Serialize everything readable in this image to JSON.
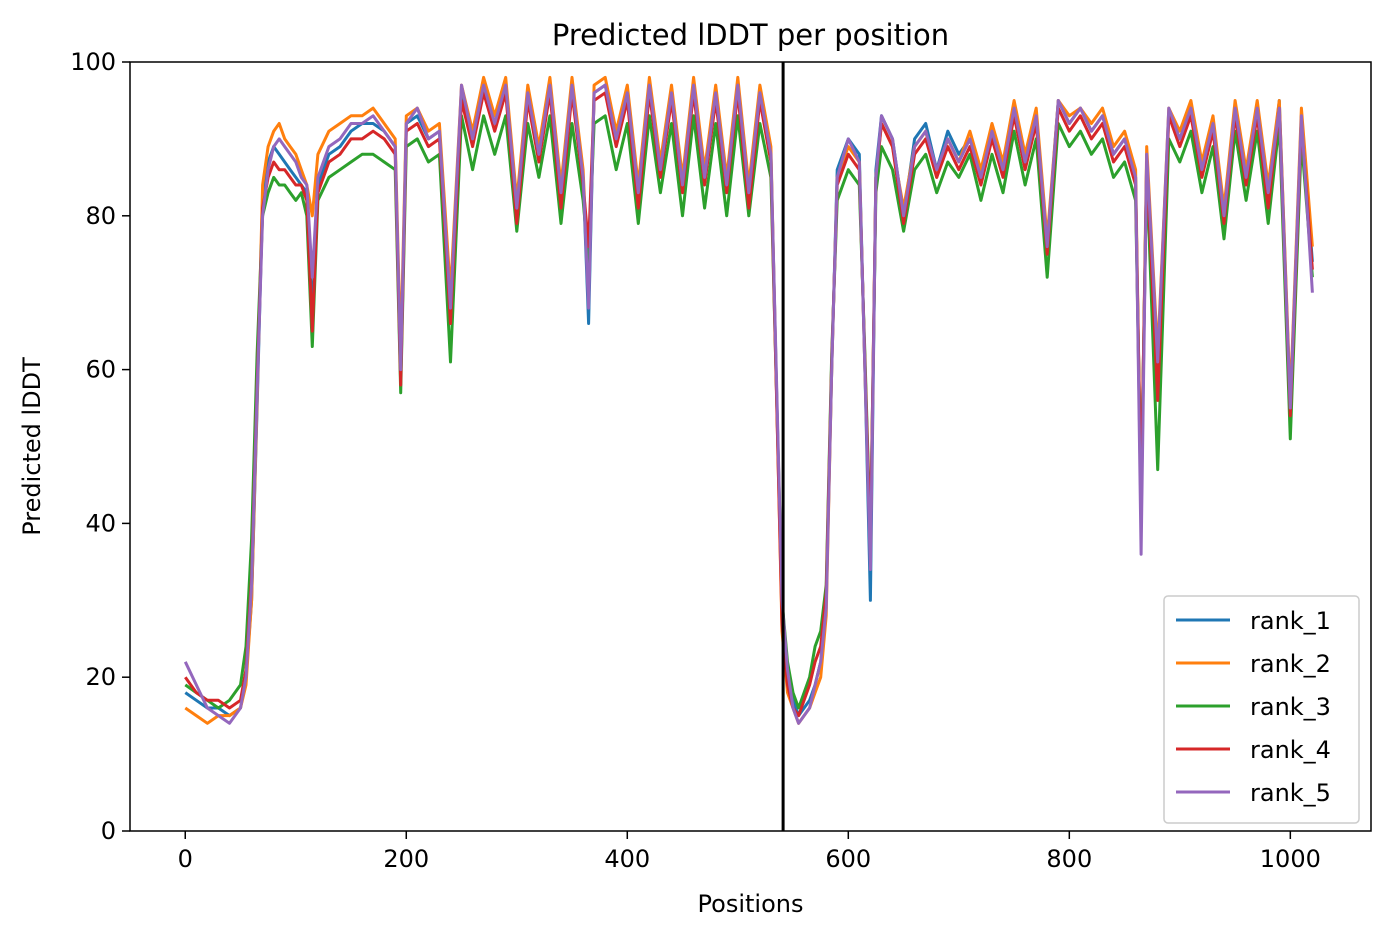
{
  "chart_data": {
    "type": "line",
    "title": "Predicted lDDT per position",
    "xlabel": "Positions",
    "ylabel": "Predicted lDDT",
    "xlim": [
      -50,
      1073
    ],
    "ylim": [
      0,
      100
    ],
    "xticks": [
      0,
      200,
      400,
      600,
      800,
      1000
    ],
    "yticks": [
      0,
      20,
      40,
      60,
      80,
      100
    ],
    "grid": false,
    "legend_position": "lower right",
    "vline_x": 541,
    "series": [
      {
        "name": "rank_1",
        "color": "#1f77b4",
        "x": [
          0,
          10,
          20,
          30,
          40,
          50,
          55,
          60,
          65,
          70,
          75,
          80,
          85,
          90,
          95,
          100,
          105,
          110,
          115,
          120,
          130,
          140,
          150,
          160,
          170,
          180,
          190,
          195,
          200,
          210,
          220,
          230,
          240,
          250,
          260,
          270,
          280,
          290,
          300,
          310,
          320,
          330,
          340,
          350,
          360,
          365,
          370,
          380,
          390,
          400,
          410,
          420,
          430,
          440,
          450,
          460,
          470,
          480,
          490,
          500,
          510,
          520,
          530,
          540,
          545,
          550,
          555,
          560,
          565,
          570,
          575,
          580,
          585,
          590,
          600,
          610,
          615,
          620,
          625,
          630,
          640,
          650,
          660,
          670,
          680,
          690,
          700,
          710,
          720,
          730,
          740,
          750,
          760,
          770,
          780,
          790,
          800,
          810,
          820,
          830,
          840,
          850,
          860,
          865,
          870,
          880,
          890,
          900,
          910,
          920,
          930,
          940,
          950,
          960,
          970,
          980,
          990,
          1000,
          1010,
          1020
        ],
        "y": [
          18,
          17,
          16,
          16,
          15,
          16,
          20,
          30,
          55,
          82,
          87,
          89,
          88,
          87,
          86,
          85,
          84,
          83,
          67,
          84,
          88,
          89,
          91,
          92,
          92,
          91,
          89,
          59,
          92,
          93,
          90,
          91,
          68,
          96,
          90,
          97,
          92,
          97,
          80,
          96,
          88,
          97,
          82,
          97,
          85,
          66,
          96,
          97,
          90,
          96,
          82,
          97,
          86,
          96,
          84,
          97,
          85,
          96,
          84,
          97,
          82,
          96,
          88,
          28,
          20,
          17,
          15,
          16,
          17,
          19,
          22,
          30,
          60,
          86,
          90,
          88,
          60,
          30,
          86,
          93,
          90,
          80,
          90,
          92,
          86,
          91,
          88,
          90,
          85,
          91,
          86,
          94,
          87,
          93,
          76,
          95,
          92,
          94,
          91,
          93,
          88,
          90,
          85,
          40,
          88,
          60,
          93,
          90,
          94,
          86,
          92,
          80,
          94,
          85,
          94,
          82,
          95,
          55,
          93,
          74
        ]
      },
      {
        "name": "rank_2",
        "color": "#ff7f0e",
        "x": [
          0,
          10,
          20,
          30,
          40,
          50,
          55,
          60,
          65,
          70,
          75,
          80,
          85,
          90,
          95,
          100,
          105,
          110,
          115,
          120,
          130,
          140,
          150,
          160,
          170,
          180,
          190,
          195,
          200,
          210,
          220,
          230,
          240,
          250,
          260,
          270,
          280,
          290,
          300,
          310,
          320,
          330,
          340,
          350,
          360,
          365,
          370,
          380,
          390,
          400,
          410,
          420,
          430,
          440,
          450,
          460,
          470,
          480,
          490,
          500,
          510,
          520,
          530,
          540,
          545,
          550,
          555,
          560,
          565,
          570,
          575,
          580,
          585,
          590,
          600,
          610,
          615,
          620,
          625,
          630,
          640,
          650,
          660,
          670,
          680,
          690,
          700,
          710,
          720,
          730,
          740,
          750,
          760,
          770,
          780,
          790,
          800,
          810,
          820,
          830,
          840,
          850,
          860,
          865,
          870,
          880,
          890,
          900,
          910,
          920,
          930,
          940,
          950,
          960,
          970,
          980,
          990,
          1000,
          1010,
          1020
        ],
        "y": [
          16,
          15,
          14,
          15,
          15,
          16,
          19,
          30,
          56,
          84,
          89,
          91,
          92,
          90,
          89,
          88,
          86,
          84,
          80,
          88,
          91,
          92,
          93,
          93,
          94,
          92,
          90,
          62,
          93,
          94,
          91,
          92,
          70,
          97,
          91,
          98,
          93,
          98,
          82,
          97,
          89,
          98,
          84,
          98,
          86,
          70,
          97,
          98,
          91,
          97,
          84,
          98,
          87,
          97,
          85,
          98,
          86,
          97,
          85,
          98,
          84,
          97,
          89,
          26,
          18,
          16,
          14,
          15,
          16,
          18,
          20,
          28,
          60,
          85,
          89,
          87,
          60,
          36,
          85,
          92,
          89,
          81,
          89,
          91,
          85,
          90,
          87,
          91,
          86,
          92,
          87,
          95,
          88,
          94,
          77,
          95,
          93,
          94,
          92,
          94,
          89,
          91,
          86,
          42,
          89,
          62,
          94,
          91,
          95,
          87,
          93,
          81,
          95,
          86,
          95,
          84,
          95,
          56,
          94,
          76
        ]
      },
      {
        "name": "rank_3",
        "color": "#2ca02c",
        "x": [
          0,
          10,
          20,
          30,
          40,
          50,
          55,
          60,
          65,
          70,
          75,
          80,
          85,
          90,
          95,
          100,
          105,
          110,
          115,
          120,
          130,
          140,
          150,
          160,
          170,
          180,
          190,
          195,
          200,
          210,
          220,
          230,
          240,
          250,
          260,
          270,
          280,
          290,
          300,
          310,
          320,
          330,
          340,
          350,
          360,
          365,
          370,
          380,
          390,
          400,
          410,
          420,
          430,
          440,
          450,
          460,
          470,
          480,
          490,
          500,
          510,
          520,
          530,
          540,
          545,
          550,
          555,
          560,
          565,
          570,
          575,
          580,
          585,
          590,
          600,
          610,
          615,
          620,
          625,
          630,
          640,
          650,
          660,
          670,
          680,
          690,
          700,
          710,
          720,
          730,
          740,
          750,
          760,
          770,
          780,
          790,
          800,
          810,
          820,
          830,
          840,
          850,
          860,
          865,
          870,
          880,
          890,
          900,
          910,
          920,
          930,
          940,
          950,
          960,
          970,
          980,
          990,
          1000,
          1010,
          1020
        ],
        "y": [
          19,
          18,
          17,
          16,
          17,
          19,
          24,
          38,
          62,
          80,
          83,
          85,
          84,
          84,
          83,
          82,
          83,
          80,
          63,
          82,
          85,
          86,
          87,
          88,
          88,
          87,
          86,
          57,
          89,
          90,
          87,
          88,
          61,
          93,
          86,
          93,
          88,
          93,
          78,
          92,
          85,
          93,
          79,
          92,
          82,
          74,
          92,
          93,
          86,
          92,
          79,
          93,
          83,
          92,
          80,
          93,
          81,
          92,
          80,
          93,
          80,
          92,
          85,
          30,
          22,
          18,
          16,
          18,
          20,
          24,
          26,
          32,
          62,
          82,
          86,
          84,
          62,
          38,
          83,
          89,
          86,
          78,
          86,
          88,
          83,
          87,
          85,
          88,
          82,
          88,
          83,
          91,
          84,
          90,
          72,
          92,
          89,
          91,
          88,
          90,
          85,
          87,
          82,
          44,
          86,
          47,
          90,
          87,
          91,
          83,
          89,
          77,
          91,
          82,
          91,
          79,
          92,
          51,
          90,
          72
        ]
      },
      {
        "name": "rank_4",
        "color": "#d62728",
        "x": [
          0,
          10,
          20,
          30,
          40,
          50,
          55,
          60,
          65,
          70,
          75,
          80,
          85,
          90,
          95,
          100,
          105,
          110,
          115,
          120,
          130,
          140,
          150,
          160,
          170,
          180,
          190,
          195,
          200,
          210,
          220,
          230,
          240,
          250,
          260,
          270,
          280,
          290,
          300,
          310,
          320,
          330,
          340,
          350,
          360,
          365,
          370,
          380,
          390,
          400,
          410,
          420,
          430,
          440,
          450,
          460,
          470,
          480,
          490,
          500,
          510,
          520,
          530,
          540,
          545,
          550,
          555,
          560,
          565,
          570,
          575,
          580,
          585,
          590,
          600,
          610,
          615,
          620,
          625,
          630,
          640,
          650,
          660,
          670,
          680,
          690,
          700,
          710,
          720,
          730,
          740,
          750,
          760,
          770,
          780,
          790,
          800,
          810,
          820,
          830,
          840,
          850,
          860,
          865,
          870,
          880,
          890,
          900,
          910,
          920,
          930,
          940,
          950,
          960,
          970,
          980,
          990,
          1000,
          1010,
          1020
        ],
        "y": [
          20,
          18,
          17,
          17,
          16,
          17,
          21,
          33,
          58,
          81,
          85,
          87,
          86,
          86,
          85,
          84,
          84,
          82,
          65,
          83,
          87,
          88,
          90,
          90,
          91,
          90,
          88,
          58,
          91,
          92,
          89,
          90,
          66,
          95,
          89,
          96,
          91,
          96,
          79,
          95,
          87,
          96,
          81,
          96,
          84,
          76,
          95,
          96,
          89,
          95,
          81,
          96,
          85,
          95,
          83,
          96,
          84,
          95,
          83,
          96,
          81,
          95,
          87,
          27,
          19,
          16,
          15,
          17,
          19,
          22,
          24,
          31,
          61,
          84,
          88,
          86,
          61,
          37,
          85,
          92,
          89,
          79,
          88,
          90,
          85,
          89,
          86,
          89,
          84,
          90,
          85,
          93,
          86,
          92,
          75,
          94,
          91,
          93,
          90,
          92,
          87,
          89,
          84,
          43,
          87,
          56,
          93,
          89,
          93,
          85,
          91,
          79,
          93,
          84,
          93,
          81,
          94,
          54,
          92,
          73
        ]
      },
      {
        "name": "rank_5",
        "color": "#9467bd",
        "x": [
          0,
          10,
          20,
          30,
          40,
          50,
          55,
          60,
          65,
          70,
          75,
          80,
          85,
          90,
          95,
          100,
          105,
          110,
          115,
          120,
          130,
          140,
          150,
          160,
          170,
          180,
          190,
          195,
          200,
          210,
          220,
          230,
          240,
          250,
          260,
          270,
          280,
          290,
          300,
          310,
          320,
          330,
          340,
          350,
          360,
          365,
          370,
          380,
          390,
          400,
          410,
          420,
          430,
          440,
          450,
          460,
          470,
          480,
          490,
          500,
          510,
          520,
          530,
          540,
          545,
          550,
          555,
          560,
          565,
          570,
          575,
          580,
          585,
          590,
          600,
          610,
          615,
          620,
          625,
          630,
          640,
          650,
          660,
          670,
          680,
          690,
          700,
          710,
          720,
          730,
          740,
          750,
          760,
          770,
          780,
          790,
          800,
          810,
          820,
          830,
          840,
          850,
          860,
          865,
          870,
          880,
          890,
          900,
          910,
          920,
          930,
          940,
          950,
          960,
          970,
          980,
          990,
          1000,
          1010,
          1020
        ],
        "y": [
          22,
          19,
          16,
          15,
          14,
          16,
          20,
          32,
          57,
          80,
          86,
          89,
          90,
          89,
          88,
          87,
          85,
          84,
          72,
          85,
          89,
          90,
          92,
          92,
          93,
          91,
          89,
          60,
          92,
          94,
          90,
          91,
          68,
          97,
          90,
          97,
          92,
          97,
          81,
          96,
          88,
          97,
          83,
          97,
          85,
          68,
          96,
          97,
          90,
          96,
          83,
          97,
          86,
          96,
          84,
          97,
          85,
          96,
          84,
          97,
          83,
          96,
          88,
          30,
          21,
          16,
          14,
          15,
          16,
          19,
          22,
          29,
          60,
          85,
          90,
          87,
          60,
          34,
          85,
          93,
          90,
          80,
          89,
          91,
          86,
          90,
          87,
          90,
          85,
          91,
          86,
          94,
          87,
          93,
          76,
          95,
          92,
          94,
          91,
          93,
          88,
          90,
          85,
          36,
          88,
          61,
          94,
          90,
          94,
          86,
          92,
          80,
          94,
          85,
          94,
          83,
          94,
          55,
          93,
          70
        ]
      }
    ]
  }
}
